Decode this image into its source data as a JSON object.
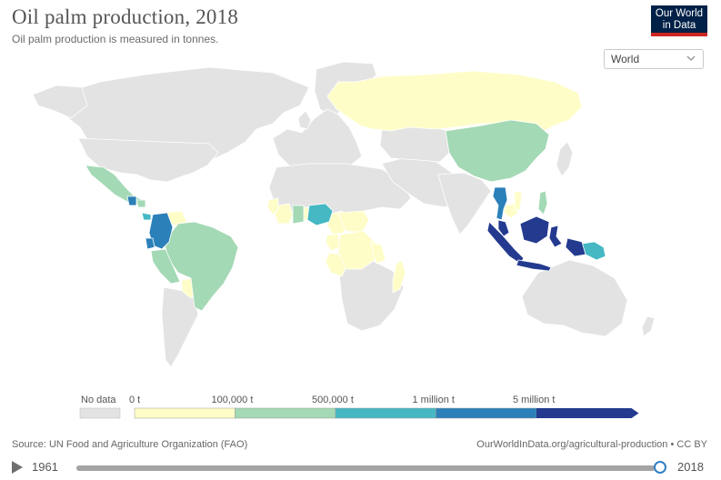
{
  "header": {
    "title": "Oil palm production, 2018",
    "subtitle": "Oil palm production is measured in tonnes."
  },
  "logo": {
    "line1": "Our World",
    "line2": "in Data"
  },
  "region_selector": {
    "value": "World"
  },
  "map": {
    "indicator": "Oil palm production",
    "year": 2018,
    "unit": "tonnes",
    "legend": {
      "no_data_label": "No data",
      "bins": [
        {
          "label": "0 t",
          "color": "#fefdc8"
        },
        {
          "label": "100,000 t",
          "color": "#a4d9b5"
        },
        {
          "label": "500,000 t",
          "color": "#45b8c4"
        },
        {
          "label": "1 million t",
          "color": "#2b80b9"
        },
        {
          "label": "5 million t",
          "color": "#233a8f"
        }
      ],
      "no_data_color": "#e3e3e3"
    },
    "colors": {
      "no_data": "#e3e3e3",
      "ocean": "#ffffff",
      "border": "#ffffff",
      "bin_0_100k": "#fefdc8",
      "bin_100k_500k": "#a4d9b5",
      "bin_500k_1m": "#45b8c4",
      "bin_1m_5m": "#2b80b9",
      "bin_5m_plus": "#233a8f"
    },
    "highlighted_regions": [
      "Russia",
      "China",
      "Mexico",
      "Central America",
      "Colombia",
      "Brazil",
      "Peru",
      "Nigeria",
      "Ghana",
      "Ivory Coast",
      "Cameroon",
      "DR Congo",
      "Madagascar",
      "Thailand",
      "Malaysia",
      "Indonesia",
      "Papua New Guinea",
      "Philippines"
    ]
  },
  "footer": {
    "source": "Source: UN Food and Agriculture Organization (FAO)",
    "link": "OurWorldInData.org/agricultural-production • CC BY"
  },
  "timeline": {
    "start_year": "1961",
    "end_year": "2018",
    "progress": 1.0
  }
}
